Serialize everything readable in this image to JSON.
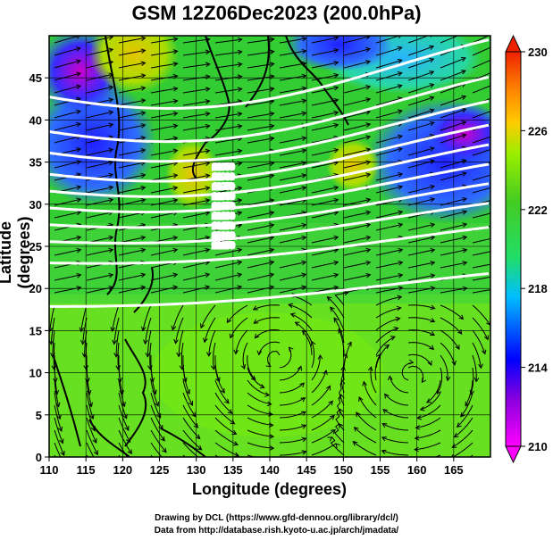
{
  "title": "GSM 12Z06Dec2023 (200.0hPa)",
  "xaxis": {
    "label": "Longitude (degrees)",
    "range": [
      110,
      170
    ],
    "ticks": [
      "110",
      "115",
      "120",
      "125",
      "130",
      "135",
      "140",
      "145",
      "150",
      "155",
      "160",
      "165"
    ]
  },
  "yaxis": {
    "label": "Latitude  (degrees)",
    "range": [
      0,
      50
    ],
    "ticks": [
      "0",
      "5",
      "10",
      "15",
      "20",
      "25",
      "30",
      "35",
      "40",
      "45"
    ]
  },
  "colorbar": {
    "ticks": [
      "210",
      "214",
      "218",
      "222",
      "226",
      "230"
    ],
    "range": [
      210,
      230
    ],
    "colors": [
      "#ff00ff",
      "#9400d3",
      "#0000ff",
      "#00bfff",
      "#00ff7f",
      "#32cd32",
      "#7fff00",
      "#ffd700",
      "#ff8c00",
      "#ff0000"
    ]
  },
  "contour_labels": [
    "11850",
    "11900",
    "11950",
    "12000",
    "12050",
    "12100",
    "12150",
    "12200",
    "12250"
  ],
  "credits": {
    "line1": "Drawing by DCL (https://www.gfd-dennou.org/library/dcl/)",
    "line2": "Data from http://database.rish.kyoto-u.ac.jp/arch/jmadata/"
  }
}
